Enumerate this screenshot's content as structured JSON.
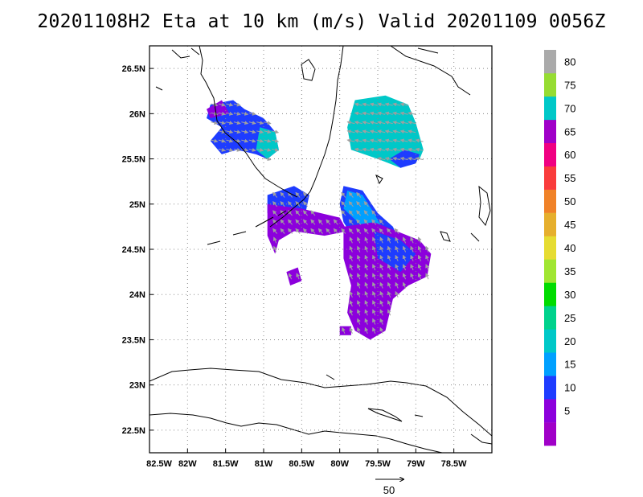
{
  "title": "20201108H2 Eta at 10 km (m/s) Valid 20201109 0056Z",
  "map": {
    "lon_range": [
      -82.5,
      -78.0
    ],
    "lat_range": [
      22.25,
      26.75
    ],
    "lat_ticks": [
      {
        "value": 26.5,
        "label": "26.5N"
      },
      {
        "value": 26.0,
        "label": "26N"
      },
      {
        "value": 25.5,
        "label": "25.5N"
      },
      {
        "value": 25.0,
        "label": "25N"
      },
      {
        "value": 24.5,
        "label": "24.5N"
      },
      {
        "value": 24.0,
        "label": "24N"
      },
      {
        "value": 23.5,
        "label": "23.5N"
      },
      {
        "value": 23.0,
        "label": "23N"
      },
      {
        "value": 22.5,
        "label": "22.5N"
      }
    ],
    "lon_ticks": [
      {
        "value": -82.5,
        "label": "82.5W"
      },
      {
        "value": -82.0,
        "label": "82W"
      },
      {
        "value": -81.5,
        "label": "81.5W"
      },
      {
        "value": -81.0,
        "label": "81W"
      },
      {
        "value": -80.5,
        "label": "80.5W"
      },
      {
        "value": -80.0,
        "label": "80W"
      },
      {
        "value": -79.5,
        "label": "79.5W"
      },
      {
        "value": -79.0,
        "label": "79W"
      },
      {
        "value": -78.5,
        "label": "78.5W"
      }
    ],
    "grid": "dotted",
    "coastline_color": "#000000"
  },
  "colorbar": {
    "levels": [
      {
        "label": "",
        "color": "#a000c8"
      },
      {
        "label": "5",
        "color": "#8c00dc"
      },
      {
        "label": "10",
        "color": "#1e3cff"
      },
      {
        "label": "15",
        "color": "#00a0ff"
      },
      {
        "label": "20",
        "color": "#00c8c8"
      },
      {
        "label": "25",
        "color": "#00d28c"
      },
      {
        "label": "30",
        "color": "#00dc00"
      },
      {
        "label": "35",
        "color": "#a0e632"
      },
      {
        "label": "40",
        "color": "#e6dc32"
      },
      {
        "label": "45",
        "color": "#e6af2d"
      },
      {
        "label": "50",
        "color": "#f08228"
      },
      {
        "label": "55",
        "color": "#fa3c3c"
      },
      {
        "label": "60",
        "color": "#f00082"
      },
      {
        "label": "65",
        "color": "#a000c8"
      },
      {
        "label": "70",
        "color": "#00c8c8"
      },
      {
        "label": "75",
        "color": "#96dc32"
      },
      {
        "label": "80",
        "color": "#aaaaaa"
      }
    ]
  },
  "vector_key": {
    "label": "50"
  },
  "wind_field": {
    "vector_color": "#a0a0a0",
    "blobs": [
      {
        "name": "sw-florida-blob",
        "color": "#1e3cff",
        "points": [
          [
            -81.7,
            26.1
          ],
          [
            -81.4,
            26.15
          ],
          [
            -81.25,
            26.05
          ],
          [
            -81.0,
            25.95
          ],
          [
            -80.85,
            25.8
          ],
          [
            -80.8,
            25.6
          ],
          [
            -80.95,
            25.5
          ],
          [
            -81.1,
            25.55
          ],
          [
            -81.35,
            25.6
          ],
          [
            -81.55,
            25.55
          ],
          [
            -81.7,
            25.7
          ],
          [
            -81.55,
            25.85
          ],
          [
            -81.75,
            25.95
          ]
        ]
      },
      {
        "name": "sw-florida-cyan",
        "color": "#00c8c8",
        "points": [
          [
            -81.05,
            25.85
          ],
          [
            -80.85,
            25.8
          ],
          [
            -80.8,
            25.6
          ],
          [
            -80.95,
            25.5
          ],
          [
            -81.1,
            25.6
          ]
        ]
      },
      {
        "name": "sw-florida-purple",
        "color": "#8c00dc",
        "points": [
          [
            -81.75,
            26.05
          ],
          [
            -81.55,
            26.15
          ],
          [
            -81.45,
            26.0
          ],
          [
            -81.7,
            25.95
          ]
        ]
      },
      {
        "name": "ne-blob",
        "color": "#00c8c8",
        "points": [
          [
            -79.8,
            26.15
          ],
          [
            -79.4,
            26.2
          ],
          [
            -79.1,
            26.1
          ],
          [
            -79.0,
            25.9
          ],
          [
            -78.9,
            25.6
          ],
          [
            -78.95,
            25.5
          ],
          [
            -79.2,
            25.4
          ],
          [
            -79.5,
            25.5
          ],
          [
            -79.85,
            25.6
          ],
          [
            -79.9,
            25.85
          ]
        ]
      },
      {
        "name": "ne-blob-blue",
        "color": "#1e3cff",
        "points": [
          [
            -79.2,
            25.4
          ],
          [
            -79.0,
            25.45
          ],
          [
            -78.95,
            25.55
          ],
          [
            -79.15,
            25.6
          ],
          [
            -79.35,
            25.5
          ]
        ]
      },
      {
        "name": "bahamas-blue-upper",
        "color": "#1e3cff",
        "points": [
          [
            -79.95,
            25.2
          ],
          [
            -79.7,
            25.15
          ],
          [
            -79.5,
            24.9
          ],
          [
            -79.3,
            24.75
          ],
          [
            -79.2,
            24.55
          ],
          [
            -79.55,
            24.45
          ],
          [
            -79.8,
            24.6
          ],
          [
            -79.95,
            24.8
          ],
          [
            -80.0,
            25.0
          ]
        ]
      },
      {
        "name": "bahamas-cyan",
        "color": "#00a0ff",
        "points": [
          [
            -79.9,
            25.15
          ],
          [
            -79.7,
            25.1
          ],
          [
            -79.55,
            24.9
          ],
          [
            -79.45,
            24.75
          ],
          [
            -79.7,
            24.75
          ],
          [
            -79.95,
            24.95
          ]
        ]
      },
      {
        "name": "keys-blob",
        "color": "#1e3cff",
        "points": [
          [
            -80.95,
            25.1
          ],
          [
            -80.6,
            25.2
          ],
          [
            -80.4,
            25.1
          ],
          [
            -80.45,
            24.9
          ],
          [
            -80.7,
            24.85
          ],
          [
            -80.95,
            24.9
          ]
        ]
      },
      {
        "name": "keys-purple-strip",
        "color": "#8c00dc",
        "points": [
          [
            -80.95,
            25.0
          ],
          [
            -80.5,
            24.95
          ],
          [
            -80.0,
            24.85
          ],
          [
            -79.9,
            24.7
          ],
          [
            -80.2,
            24.65
          ],
          [
            -80.6,
            24.7
          ],
          [
            -80.8,
            24.6
          ],
          [
            -80.85,
            24.45
          ],
          [
            -80.95,
            24.65
          ]
        ]
      },
      {
        "name": "south-purple-main",
        "color": "#8c00dc",
        "points": [
          [
            -79.95,
            24.75
          ],
          [
            -79.55,
            24.8
          ],
          [
            -79.25,
            24.7
          ],
          [
            -78.95,
            24.6
          ],
          [
            -78.8,
            24.45
          ],
          [
            -78.85,
            24.2
          ],
          [
            -79.1,
            24.1
          ],
          [
            -79.3,
            23.95
          ],
          [
            -79.4,
            23.6
          ],
          [
            -79.6,
            23.5
          ],
          [
            -79.8,
            23.6
          ],
          [
            -79.9,
            23.8
          ],
          [
            -79.85,
            24.1
          ],
          [
            -79.95,
            24.4
          ]
        ]
      },
      {
        "name": "south-blue-core",
        "color": "#1e3cff",
        "points": [
          [
            -79.55,
            24.7
          ],
          [
            -79.2,
            24.6
          ],
          [
            -79.0,
            24.45
          ],
          [
            -79.2,
            24.25
          ],
          [
            -79.5,
            24.4
          ]
        ]
      },
      {
        "name": "small-purple-1",
        "color": "#8c00dc",
        "points": [
          [
            -80.7,
            24.25
          ],
          [
            -80.55,
            24.3
          ],
          [
            -80.5,
            24.15
          ],
          [
            -80.65,
            24.1
          ]
        ]
      },
      {
        "name": "small-purple-2",
        "color": "#8c00dc",
        "points": [
          [
            -80.0,
            23.65
          ],
          [
            -79.85,
            23.65
          ],
          [
            -79.85,
            23.55
          ],
          [
            -80.0,
            23.55
          ]
        ]
      }
    ]
  }
}
